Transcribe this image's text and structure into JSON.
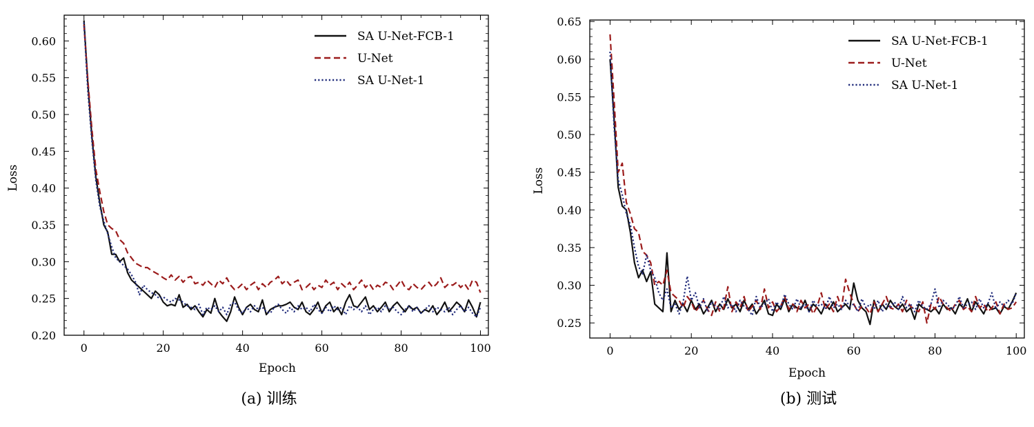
{
  "colors": {
    "SA U-Net-FCB-1": "#111111",
    "U-Net": "#9b1b1b",
    "SA U-Net-1": "#1f2a7a"
  },
  "chart_data": [
    {
      "type": "line",
      "caption": "(a) 训练",
      "xlabel": "Epoch",
      "ylabel": "Loss",
      "xlim": [
        -5,
        102
      ],
      "ylim": [
        0.2,
        0.635
      ],
      "xticks": [
        0,
        20,
        40,
        60,
        80,
        100
      ],
      "yticks": [
        0.2,
        0.25,
        0.3,
        0.35,
        0.4,
        0.45,
        0.5,
        0.55,
        0.6
      ],
      "legend_position": "top-right",
      "series": [
        {
          "name": "SA U-Net-FCB-1",
          "style": "solid",
          "values": [
            0.628,
            0.54,
            0.47,
            0.415,
            0.38,
            0.35,
            0.34,
            0.31,
            0.31,
            0.3,
            0.305,
            0.285,
            0.275,
            0.27,
            0.265,
            0.26,
            0.255,
            0.25,
            0.26,
            0.255,
            0.245,
            0.24,
            0.242,
            0.24,
            0.255,
            0.238,
            0.242,
            0.235,
            0.24,
            0.232,
            0.225,
            0.235,
            0.23,
            0.25,
            0.232,
            0.225,
            0.219,
            0.232,
            0.252,
            0.238,
            0.228,
            0.238,
            0.242,
            0.235,
            0.232,
            0.248,
            0.228,
            0.235,
            0.238,
            0.24,
            0.24,
            0.242,
            0.245,
            0.238,
            0.235,
            0.245,
            0.232,
            0.228,
            0.235,
            0.245,
            0.23,
            0.24,
            0.245,
            0.232,
            0.238,
            0.228,
            0.245,
            0.255,
            0.24,
            0.238,
            0.245,
            0.252,
            0.235,
            0.24,
            0.232,
            0.238,
            0.245,
            0.232,
            0.24,
            0.245,
            0.238,
            0.232,
            0.24,
            0.235,
            0.238,
            0.23,
            0.235,
            0.232,
            0.24,
            0.228,
            0.235,
            0.245,
            0.232,
            0.238,
            0.245,
            0.24,
            0.232,
            0.248,
            0.238,
            0.225,
            0.245
          ]
        },
        {
          "name": "U-Net",
          "style": "dashed",
          "values": [
            0.622,
            0.545,
            0.48,
            0.425,
            0.395,
            0.368,
            0.35,
            0.345,
            0.342,
            0.33,
            0.325,
            0.312,
            0.305,
            0.298,
            0.295,
            0.292,
            0.292,
            0.288,
            0.285,
            0.282,
            0.278,
            0.275,
            0.282,
            0.275,
            0.28,
            0.272,
            0.278,
            0.28,
            0.27,
            0.272,
            0.268,
            0.275,
            0.27,
            0.265,
            0.275,
            0.27,
            0.278,
            0.268,
            0.262,
            0.265,
            0.27,
            0.262,
            0.268,
            0.272,
            0.262,
            0.27,
            0.265,
            0.272,
            0.275,
            0.28,
            0.27,
            0.275,
            0.268,
            0.272,
            0.275,
            0.262,
            0.265,
            0.27,
            0.262,
            0.268,
            0.265,
            0.275,
            0.268,
            0.272,
            0.262,
            0.27,
            0.265,
            0.272,
            0.262,
            0.268,
            0.275,
            0.265,
            0.27,
            0.262,
            0.268,
            0.265,
            0.272,
            0.27,
            0.262,
            0.268,
            0.275,
            0.265,
            0.262,
            0.27,
            0.265,
            0.262,
            0.268,
            0.272,
            0.265,
            0.27,
            0.278,
            0.265,
            0.27,
            0.268,
            0.272,
            0.265,
            0.27,
            0.262,
            0.275,
            0.272,
            0.258
          ]
        },
        {
          "name": "SA U-Net-1",
          "style": "dotted",
          "values": [
            0.625,
            0.53,
            0.465,
            0.41,
            0.375,
            0.355,
            0.338,
            0.32,
            0.305,
            0.3,
            0.295,
            0.29,
            0.282,
            0.272,
            0.255,
            0.268,
            0.262,
            0.258,
            0.255,
            0.25,
            0.252,
            0.248,
            0.245,
            0.25,
            0.248,
            0.245,
            0.24,
            0.238,
            0.235,
            0.242,
            0.228,
            0.238,
            0.235,
            0.24,
            0.232,
            0.238,
            0.228,
            0.242,
            0.245,
            0.235,
            0.23,
            0.238,
            0.232,
            0.24,
            0.235,
            0.238,
            0.232,
            0.23,
            0.238,
            0.242,
            0.235,
            0.23,
            0.238,
            0.232,
            0.24,
            0.235,
            0.238,
            0.232,
            0.242,
            0.235,
            0.23,
            0.238,
            0.232,
            0.24,
            0.235,
            0.238,
            0.228,
            0.24,
            0.235,
            0.238,
            0.232,
            0.24,
            0.228,
            0.235,
            0.238,
            0.232,
            0.24,
            0.235,
            0.238,
            0.232,
            0.228,
            0.235,
            0.24,
            0.232,
            0.238,
            0.23,
            0.235,
            0.24,
            0.232,
            0.238,
            0.235,
            0.232,
            0.238,
            0.228,
            0.235,
            0.24,
            0.232,
            0.238,
            0.23,
            0.225,
            0.238
          ]
        }
      ]
    },
    {
      "type": "line",
      "caption": "(b) 测试",
      "xlabel": "Epoch",
      "ylabel": "Loss",
      "xlim": [
        -5,
        102
      ],
      "ylim": [
        0.23,
        0.652
      ],
      "xticks": [
        0,
        20,
        40,
        60,
        80,
        100
      ],
      "yticks": [
        0.25,
        0.3,
        0.35,
        0.4,
        0.45,
        0.5,
        0.55,
        0.6,
        0.65
      ],
      "legend_position": "top-right",
      "series": [
        {
          "name": "SA U-Net-FCB-1",
          "style": "solid",
          "values": [
            0.6,
            0.52,
            0.43,
            0.405,
            0.4,
            0.37,
            0.33,
            0.31,
            0.32,
            0.305,
            0.318,
            0.275,
            0.27,
            0.265,
            0.343,
            0.265,
            0.28,
            0.268,
            0.275,
            0.265,
            0.28,
            0.268,
            0.275,
            0.262,
            0.27,
            0.28,
            0.265,
            0.275,
            0.268,
            0.282,
            0.27,
            0.275,
            0.265,
            0.28,
            0.268,
            0.275,
            0.262,
            0.27,
            0.28,
            0.262,
            0.26,
            0.275,
            0.268,
            0.282,
            0.265,
            0.275,
            0.27,
            0.268,
            0.28,
            0.265,
            0.275,
            0.27,
            0.262,
            0.275,
            0.268,
            0.278,
            0.265,
            0.27,
            0.275,
            0.268,
            0.303,
            0.28,
            0.27,
            0.265,
            0.248,
            0.28,
            0.265,
            0.275,
            0.268,
            0.28,
            0.272,
            0.268,
            0.275,
            0.265,
            0.27,
            0.255,
            0.275,
            0.27,
            0.268,
            0.265,
            0.27,
            0.262,
            0.275,
            0.268,
            0.27,
            0.262,
            0.275,
            0.27,
            0.282,
            0.265,
            0.278,
            0.27,
            0.262,
            0.275,
            0.268,
            0.27,
            0.262,
            0.272,
            0.268,
            0.278,
            0.29
          ]
        },
        {
          "name": "U-Net",
          "style": "dashed",
          "values": [
            0.633,
            0.545,
            0.45,
            0.462,
            0.41,
            0.395,
            0.375,
            0.37,
            0.345,
            0.34,
            0.33,
            0.3,
            0.305,
            0.3,
            0.32,
            0.29,
            0.285,
            0.28,
            0.27,
            0.285,
            0.278,
            0.265,
            0.272,
            0.28,
            0.268,
            0.26,
            0.278,
            0.265,
            0.27,
            0.298,
            0.265,
            0.278,
            0.27,
            0.285,
            0.265,
            0.272,
            0.28,
            0.268,
            0.295,
            0.27,
            0.278,
            0.265,
            0.272,
            0.285,
            0.268,
            0.275,
            0.265,
            0.28,
            0.27,
            0.275,
            0.262,
            0.272,
            0.29,
            0.268,
            0.275,
            0.265,
            0.285,
            0.27,
            0.308,
            0.29,
            0.275,
            0.265,
            0.272,
            0.27,
            0.262,
            0.278,
            0.265,
            0.275,
            0.285,
            0.27,
            0.268,
            0.275,
            0.265,
            0.28,
            0.272,
            0.268,
            0.265,
            0.278,
            0.25,
            0.275,
            0.268,
            0.285,
            0.275,
            0.27,
            0.265,
            0.275,
            0.28,
            0.268,
            0.272,
            0.265,
            0.285,
            0.27,
            0.275,
            0.265,
            0.27,
            0.278,
            0.262,
            0.275,
            0.268,
            0.27,
            0.278
          ]
        },
        {
          "name": "SA U-Net-1",
          "style": "dotted",
          "values": [
            0.61,
            0.51,
            0.44,
            0.42,
            0.395,
            0.38,
            0.35,
            0.325,
            0.315,
            0.34,
            0.32,
            0.31,
            0.29,
            0.28,
            0.295,
            0.27,
            0.275,
            0.262,
            0.278,
            0.312,
            0.28,
            0.29,
            0.27,
            0.282,
            0.265,
            0.278,
            0.272,
            0.268,
            0.285,
            0.27,
            0.275,
            0.265,
            0.28,
            0.272,
            0.268,
            0.26,
            0.285,
            0.27,
            0.275,
            0.282,
            0.265,
            0.278,
            0.27,
            0.288,
            0.275,
            0.268,
            0.282,
            0.27,
            0.275,
            0.265,
            0.28,
            0.272,
            0.275,
            0.268,
            0.285,
            0.27,
            0.275,
            0.268,
            0.28,
            0.272,
            0.275,
            0.265,
            0.282,
            0.27,
            0.275,
            0.268,
            0.28,
            0.265,
            0.275,
            0.27,
            0.278,
            0.268,
            0.285,
            0.27,
            0.275,
            0.265,
            0.28,
            0.272,
            0.268,
            0.275,
            0.295,
            0.27,
            0.28,
            0.275,
            0.268,
            0.272,
            0.285,
            0.27,
            0.275,
            0.278,
            0.268,
            0.282,
            0.27,
            0.275,
            0.29,
            0.268,
            0.278,
            0.272,
            0.28,
            0.275,
            0.29
          ]
        }
      ]
    }
  ]
}
